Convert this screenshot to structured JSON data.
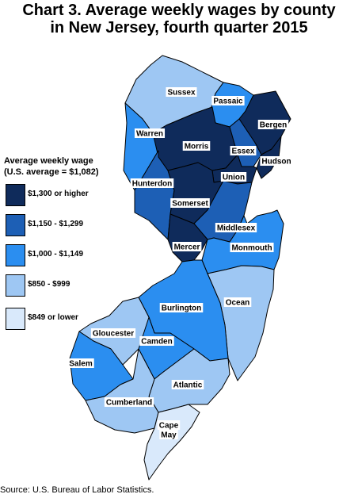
{
  "title": {
    "line1": "Chart 3. Average weekly wages by county",
    "line2": "in New Jersey, fourth quarter 2015"
  },
  "colors": {
    "c1": "#0f2b5b",
    "c2": "#1d5fb5",
    "c3": "#2b8ef0",
    "c4": "#9ec7f3",
    "c5": "#d9e9fb"
  },
  "legend": {
    "title_line1": "Average weekly wage",
    "title_line2": "(U.S. average = $1,082)",
    "items": [
      {
        "label": "$1,300 or higher",
        "color": "#0f2b5b"
      },
      {
        "label": "$1,150 - $1,299",
        "color": "#1d5fb5"
      },
      {
        "label": "$1,000 - $1,149",
        "color": "#2b8ef0"
      },
      {
        "label": "$850 - $999",
        "color": "#9ec7f3"
      },
      {
        "label": "$849 or lower",
        "color": "#d9e9fb"
      }
    ]
  },
  "counties": [
    {
      "name": "Sussex",
      "range": "$850 - $999"
    },
    {
      "name": "Passaic",
      "range": "$1,000 - $1,149"
    },
    {
      "name": "Bergen",
      "range": "$1,300 or higher"
    },
    {
      "name": "Warren",
      "range": "$1,000 - $1,149"
    },
    {
      "name": "Morris",
      "range": "$1,300 or higher"
    },
    {
      "name": "Essex",
      "range": "$1,150 - $1,299"
    },
    {
      "name": "Hudson",
      "range": "$1,300 or higher"
    },
    {
      "name": "Union",
      "range": "$1,300 or higher"
    },
    {
      "name": "Hunterdon",
      "range": "$1,150 - $1,299"
    },
    {
      "name": "Somerset",
      "range": "$1,300 or higher"
    },
    {
      "name": "Middlesex",
      "range": "$1,150 - $1,299"
    },
    {
      "name": "Mercer",
      "range": "$1,300 or higher"
    },
    {
      "name": "Monmouth",
      "range": "$1,000 - $1,149"
    },
    {
      "name": "Ocean",
      "range": "$850 - $999"
    },
    {
      "name": "Burlington",
      "range": "$1,000 - $1,149"
    },
    {
      "name": "Gloucester",
      "range": "$850 - $999"
    },
    {
      "name": "Camden",
      "range": "$1,000 - $1,149"
    },
    {
      "name": "Salem",
      "range": "$1,000 - $1,149"
    },
    {
      "name": "Atlantic",
      "range": "$850 - $999"
    },
    {
      "name": "Cumberland",
      "range": "$850 - $999"
    },
    {
      "name": "Cape May line1",
      "text": "Cape"
    },
    {
      "name": "Cape May line2",
      "text": "May"
    }
  ],
  "cape_may": {
    "range": "$849 or lower"
  },
  "source": "Source: U.S. Bureau of Labor Statistics."
}
